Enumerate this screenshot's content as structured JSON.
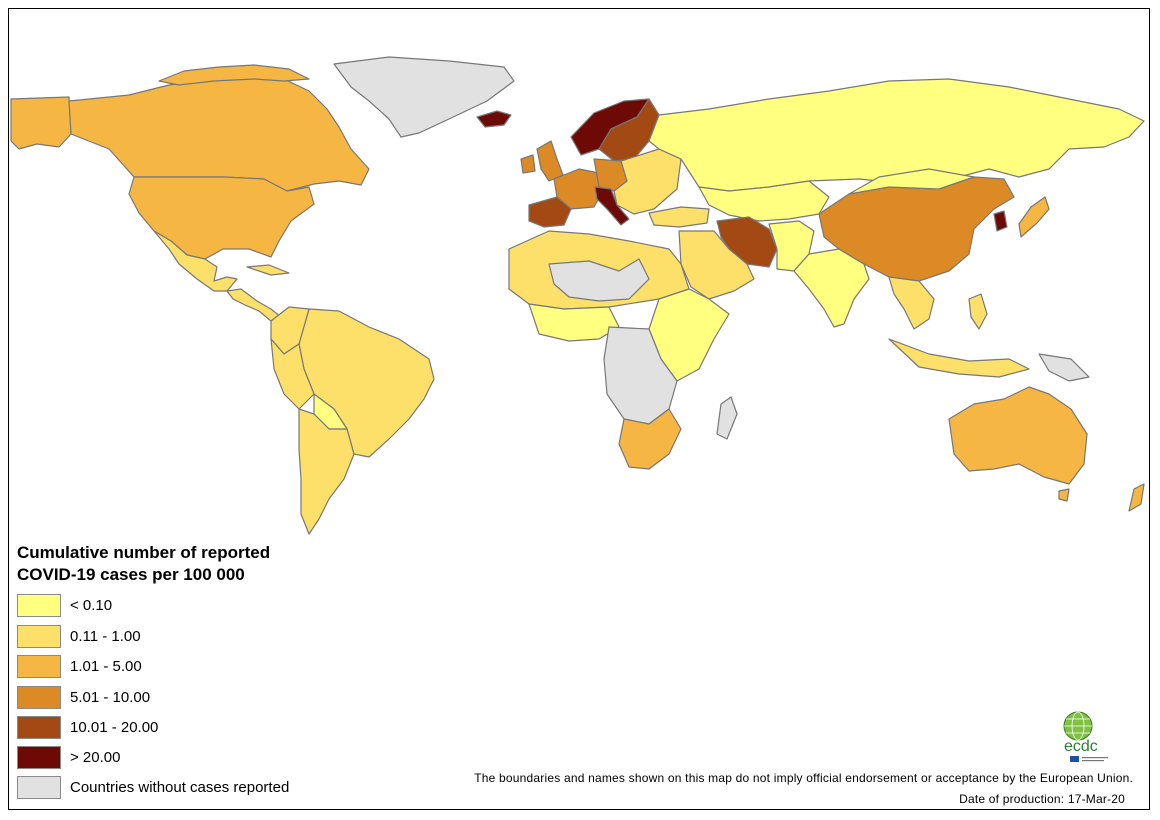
{
  "map": {
    "title_line1": "Cumulative number of reported",
    "title_line2": "COVID-19 cases per 100 000",
    "legend": [
      {
        "label": "< 0.10",
        "color": "#ffff80"
      },
      {
        "label": "0.11 - 1.00",
        "color": "#fde06a"
      },
      {
        "label": "1.01 - 5.00",
        "color": "#f5b644"
      },
      {
        "label": "5.01 - 10.00",
        "color": "#dc8a26"
      },
      {
        "label": "10.01 - 20.00",
        "color": "#a34a14"
      },
      {
        "label": "> 20.00",
        "color": "#6e0a06"
      },
      {
        "label": "Countries without cases reported",
        "color": "#e1e1e1"
      }
    ],
    "disclaimer": "The boundaries and names shown on this map do not imply official endorsement or acceptance by the European Union.",
    "date_of_production": "Date of production: 17-Mar-20",
    "logo_text": "ecdc",
    "border_color": "#7a7a7a"
  }
}
